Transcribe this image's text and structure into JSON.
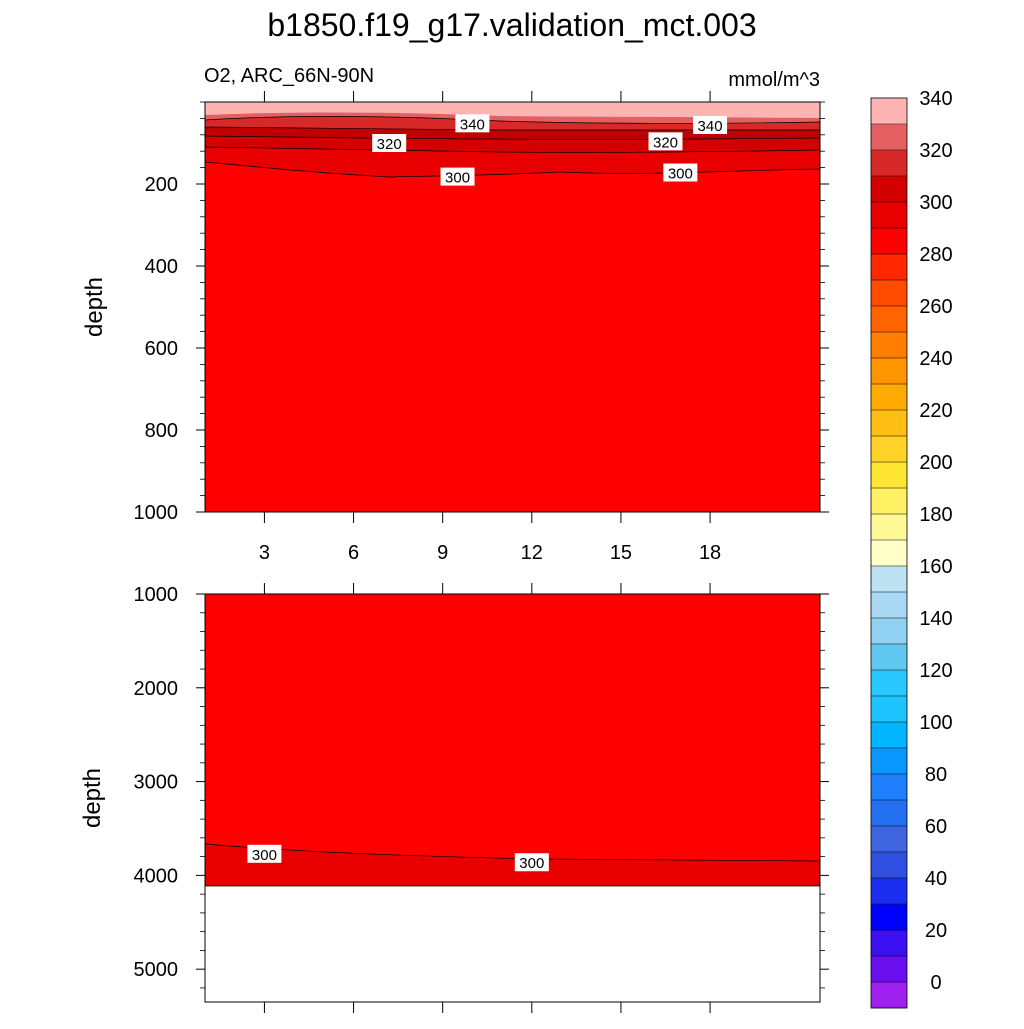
{
  "chart_data": {
    "type": "contour",
    "title": "b1850.f19_g17.validation_mct.003",
    "left_label": "O2, ARC_66N-90N",
    "right_label": "mmol/m^3",
    "panels": [
      {
        "name": "upper",
        "ylabel": "depth",
        "ylim": [
          1000,
          0
        ],
        "xlim": [
          1,
          21.7
        ],
        "x_ticks": [
          3,
          6,
          9,
          12,
          15,
          18
        ],
        "x_tick_labels": [
          "3",
          "6",
          "9",
          "12",
          "15",
          "18"
        ],
        "y_ticks": [
          200,
          400,
          600,
          800,
          1000
        ],
        "y_tick_labels": [
          "200",
          "400",
          "600",
          "800",
          "1000"
        ],
        "contour_labels": [
          {
            "text": "340",
            "x": 10.0,
            "y": 52
          },
          {
            "text": "340",
            "x": 18.0,
            "y": 56
          },
          {
            "text": "320",
            "x": 7.2,
            "y": 100
          },
          {
            "text": "320",
            "x": 16.5,
            "y": 96
          },
          {
            "text": "300",
            "x": 9.5,
            "y": 182
          },
          {
            "text": "300",
            "x": 17.0,
            "y": 172
          }
        ]
      },
      {
        "name": "lower",
        "ylabel": "depth",
        "ylim": [
          5350,
          1000
        ],
        "xlim": [
          1,
          21.7
        ],
        "y_ticks": [
          1000,
          2000,
          3000,
          4000,
          5000
        ],
        "y_tick_labels": [
          "1000",
          "2000",
          "3000",
          "4000",
          "5000"
        ],
        "bottom_depth": 4120,
        "contour_labels": [
          {
            "text": "300",
            "x": 3.0,
            "y": 3770
          },
          {
            "text": "300",
            "x": 12.0,
            "y": 3860
          }
        ]
      }
    ],
    "colorbar": {
      "tick_labels": [
        "0",
        "20",
        "40",
        "60",
        "80",
        "100",
        "120",
        "140",
        "160",
        "180",
        "200",
        "220",
        "240",
        "260",
        "280",
        "300",
        "320",
        "340"
      ],
      "colors": [
        "#a020f0",
        "#6a0ff0",
        "#3a10f0",
        "#0000ff",
        "#1c2ef0",
        "#2e4fe0",
        "#3f64e0",
        "#2270f0",
        "#1e80ff",
        "#0a96ff",
        "#00b4ff",
        "#1ec4ff",
        "#28c8ff",
        "#60c8f0",
        "#90d0f0",
        "#a8d8f4",
        "#bce2f4",
        "#ffffc8",
        "#fff896",
        "#fff064",
        "#ffe632",
        "#ffd228",
        "#ffbe14",
        "#ffaa00",
        "#ff9600",
        "#ff7d00",
        "#ff6400",
        "#ff4b00",
        "#ff2800",
        "#ff0000",
        "#e80000",
        "#d40000",
        "#d82828",
        "#e46060",
        "#ffb4b4"
      ]
    }
  }
}
